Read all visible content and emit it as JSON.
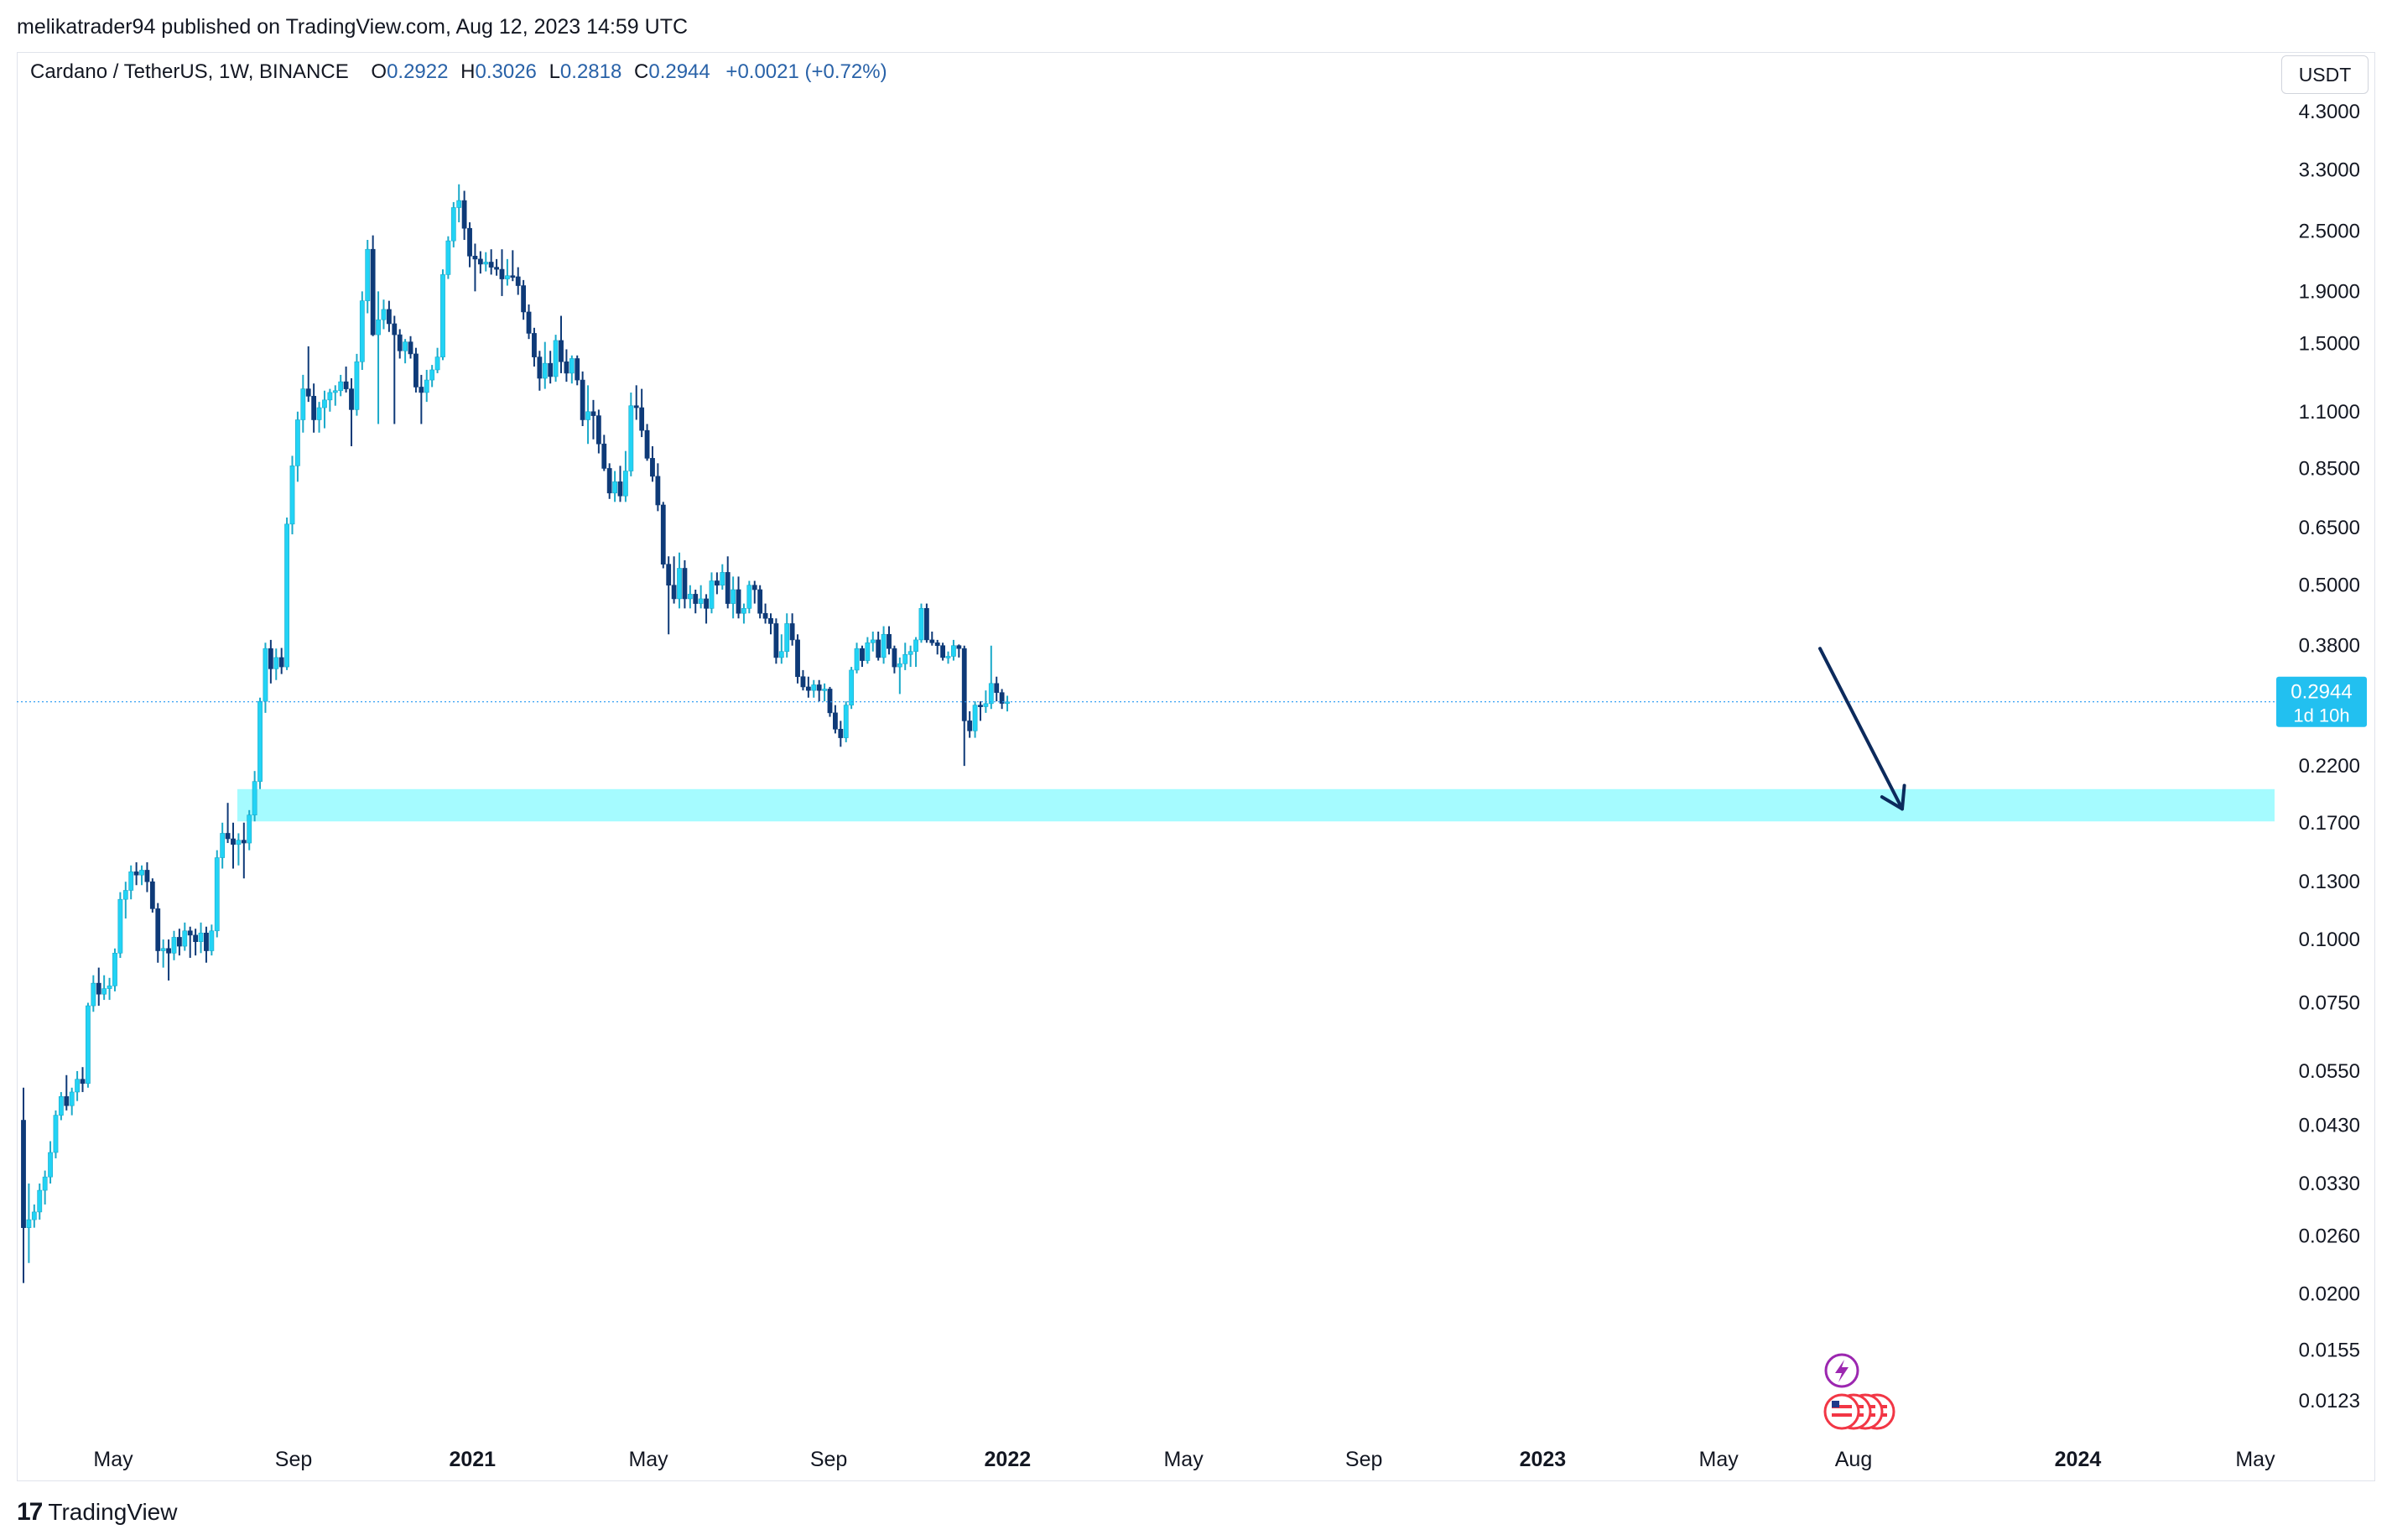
{
  "header": {
    "published_line": "melikatrader94 published on TradingView.com, Aug 12, 2023 14:59 UTC"
  },
  "legend": {
    "symbol": "Cardano / TetherUS, 1W, BINANCE",
    "o_label": "O",
    "o_value": "0.2922",
    "h_label": "H",
    "h_value": "0.3026",
    "l_label": "L",
    "l_value": "0.2818",
    "c_label": "C",
    "c_value": "0.2944",
    "change": "+0.0021 (+0.72%)"
  },
  "currency_button": "USDT",
  "price_tag": {
    "price": "0.2944",
    "countdown": "1d 10h"
  },
  "footer": {
    "brand": "TradingView",
    "logo_glyph": "17"
  },
  "colors": {
    "up": "#22d3f5",
    "down": "#0e3a78",
    "zone": "#a5fbff",
    "arrow": "#0c2a5c",
    "price_tag": "#22c0f0",
    "event_purple": "#9c27b0",
    "event_red": "#f23645"
  },
  "chart_data": {
    "type": "candlestick",
    "scale": "log",
    "symbol": "Cardano / TetherUS",
    "interval": "1W",
    "exchange": "BINANCE",
    "currency": "USDT",
    "last_price": 0.2944,
    "x_labels": [
      {
        "date": "2020-05-01",
        "label": "May",
        "bold": false
      },
      {
        "date": "2020-09-01",
        "label": "Sep",
        "bold": false
      },
      {
        "date": "2021-01-01",
        "label": "2021",
        "bold": true
      },
      {
        "date": "2021-05-01",
        "label": "May",
        "bold": false
      },
      {
        "date": "2021-09-01",
        "label": "Sep",
        "bold": false
      },
      {
        "date": "2022-01-01",
        "label": "2022",
        "bold": true
      },
      {
        "date": "2022-05-01",
        "label": "May",
        "bold": false
      },
      {
        "date": "2022-09-01",
        "label": "Sep",
        "bold": false
      },
      {
        "date": "2023-01-01",
        "label": "2023",
        "bold": true
      },
      {
        "date": "2023-05-01",
        "label": "May",
        "bold": false
      },
      {
        "date": "2023-08-01",
        "label": "Aug",
        "bold": false
      },
      {
        "date": "2024-01-01",
        "label": "2024",
        "bold": true
      },
      {
        "date": "2024-05-01",
        "label": "May",
        "bold": false
      }
    ],
    "y_ticks": [
      "4.3000",
      "3.3000",
      "2.5000",
      "1.9000",
      "1.5000",
      "1.1000",
      "0.8500",
      "0.6500",
      "0.5000",
      "0.3800",
      "0.2200",
      "0.1700",
      "0.1300",
      "0.1000",
      "0.0750",
      "0.0550",
      "0.0430",
      "0.0330",
      "0.0260",
      "0.0200",
      "0.0155",
      "0.0123"
    ],
    "ohlc_weekly": [
      [
        0.044,
        0.051,
        0.021,
        0.027
      ],
      [
        0.027,
        0.033,
        0.023,
        0.028
      ],
      [
        0.028,
        0.03,
        0.027,
        0.029
      ],
      [
        0.029,
        0.033,
        0.028,
        0.032
      ],
      [
        0.032,
        0.035,
        0.03,
        0.034
      ],
      [
        0.034,
        0.04,
        0.033,
        0.038
      ],
      [
        0.038,
        0.046,
        0.037,
        0.045
      ],
      [
        0.045,
        0.05,
        0.044,
        0.049
      ],
      [
        0.049,
        0.054,
        0.046,
        0.047
      ],
      [
        0.047,
        0.051,
        0.045,
        0.05
      ],
      [
        0.05,
        0.055,
        0.048,
        0.053
      ],
      [
        0.053,
        0.056,
        0.05,
        0.052
      ],
      [
        0.052,
        0.075,
        0.051,
        0.074
      ],
      [
        0.074,
        0.085,
        0.072,
        0.082
      ],
      [
        0.082,
        0.088,
        0.074,
        0.078
      ],
      [
        0.078,
        0.085,
        0.076,
        0.08
      ],
      [
        0.08,
        0.084,
        0.076,
        0.081
      ],
      [
        0.081,
        0.096,
        0.079,
        0.094
      ],
      [
        0.094,
        0.124,
        0.092,
        0.12
      ],
      [
        0.12,
        0.13,
        0.11,
        0.125
      ],
      [
        0.125,
        0.14,
        0.12,
        0.136
      ],
      [
        0.136,
        0.142,
        0.128,
        0.134
      ],
      [
        0.134,
        0.14,
        0.128,
        0.137
      ],
      [
        0.137,
        0.142,
        0.124,
        0.13
      ],
      [
        0.13,
        0.132,
        0.113,
        0.115
      ],
      [
        0.115,
        0.118,
        0.09,
        0.095
      ],
      [
        0.095,
        0.1,
        0.088,
        0.096
      ],
      [
        0.096,
        0.1,
        0.083,
        0.094
      ],
      [
        0.094,
        0.104,
        0.091,
        0.101
      ],
      [
        0.101,
        0.105,
        0.093,
        0.097
      ],
      [
        0.097,
        0.108,
        0.095,
        0.104
      ],
      [
        0.104,
        0.106,
        0.092,
        0.102
      ],
      [
        0.102,
        0.105,
        0.093,
        0.099
      ],
      [
        0.099,
        0.108,
        0.094,
        0.103
      ],
      [
        0.103,
        0.106,
        0.09,
        0.095
      ],
      [
        0.095,
        0.107,
        0.093,
        0.104
      ],
      [
        0.104,
        0.15,
        0.101,
        0.145
      ],
      [
        0.145,
        0.17,
        0.138,
        0.162
      ],
      [
        0.162,
        0.186,
        0.155,
        0.158
      ],
      [
        0.158,
        0.17,
        0.138,
        0.154
      ],
      [
        0.154,
        0.162,
        0.14,
        0.157
      ],
      [
        0.157,
        0.17,
        0.132,
        0.155
      ],
      [
        0.155,
        0.18,
        0.15,
        0.176
      ],
      [
        0.176,
        0.215,
        0.171,
        0.205
      ],
      [
        0.205,
        0.3,
        0.198,
        0.295
      ],
      [
        0.295,
        0.385,
        0.28,
        0.375
      ],
      [
        0.375,
        0.39,
        0.32,
        0.342
      ],
      [
        0.342,
        0.375,
        0.325,
        0.36
      ],
      [
        0.36,
        0.376,
        0.334,
        0.345
      ],
      [
        0.345,
        0.68,
        0.34,
        0.66
      ],
      [
        0.66,
        0.9,
        0.63,
        0.86
      ],
      [
        0.86,
        1.1,
        0.8,
        1.06
      ],
      [
        1.06,
        1.3,
        1.0,
        1.22
      ],
      [
        1.22,
        1.48,
        1.15,
        1.18
      ],
      [
        1.18,
        1.25,
        1.0,
        1.06
      ],
      [
        1.06,
        1.15,
        1.0,
        1.12
      ],
      [
        1.12,
        1.21,
        1.02,
        1.16
      ],
      [
        1.16,
        1.22,
        1.1,
        1.2
      ],
      [
        1.2,
        1.24,
        1.13,
        1.21
      ],
      [
        1.21,
        1.3,
        1.18,
        1.26
      ],
      [
        1.26,
        1.35,
        1.2,
        1.22
      ],
      [
        1.22,
        1.28,
        0.94,
        1.11
      ],
      [
        1.11,
        1.43,
        1.08,
        1.38
      ],
      [
        1.38,
        1.9,
        1.33,
        1.82
      ],
      [
        1.82,
        2.4,
        1.72,
        2.3
      ],
      [
        2.3,
        2.45,
        1.55,
        1.56
      ],
      [
        1.56,
        1.9,
        1.04,
        1.67
      ],
      [
        1.67,
        1.83,
        1.6,
        1.75
      ],
      [
        1.75,
        1.82,
        1.58,
        1.64
      ],
      [
        1.64,
        1.7,
        1.04,
        1.56
      ],
      [
        1.56,
        1.6,
        1.4,
        1.45
      ],
      [
        1.45,
        1.53,
        1.37,
        1.51
      ],
      [
        1.51,
        1.55,
        1.4,
        1.43
      ],
      [
        1.43,
        1.47,
        1.2,
        1.23
      ],
      [
        1.23,
        1.3,
        1.04,
        1.2
      ],
      [
        1.2,
        1.33,
        1.15,
        1.27
      ],
      [
        1.27,
        1.36,
        1.23,
        1.33
      ],
      [
        1.33,
        1.47,
        1.31,
        1.41
      ],
      [
        1.41,
        2.1,
        1.39,
        2.05
      ],
      [
        2.05,
        2.44,
        2.01,
        2.39
      ],
      [
        2.39,
        2.85,
        2.32,
        2.78
      ],
      [
        2.78,
        3.09,
        2.6,
        2.87
      ],
      [
        2.87,
        3.0,
        2.4,
        2.53
      ],
      [
        2.53,
        2.6,
        2.12,
        2.23
      ],
      [
        2.23,
        2.36,
        1.9,
        2.2
      ],
      [
        2.2,
        2.28,
        2.06,
        2.15
      ],
      [
        2.15,
        2.27,
        2.08,
        2.17
      ],
      [
        2.17,
        2.3,
        2.05,
        2.12
      ],
      [
        2.12,
        2.2,
        2.04,
        2.1
      ],
      [
        2.1,
        2.3,
        1.86,
        2.01
      ],
      [
        2.01,
        2.2,
        1.95,
        2.04
      ],
      [
        2.04,
        2.29,
        1.99,
        2.03
      ],
      [
        2.03,
        2.12,
        1.87,
        1.95
      ],
      [
        1.95,
        2.0,
        1.67,
        1.73
      ],
      [
        1.73,
        1.79,
        1.53,
        1.57
      ],
      [
        1.57,
        1.61,
        1.35,
        1.41
      ],
      [
        1.41,
        1.45,
        1.21,
        1.28
      ],
      [
        1.28,
        1.51,
        1.22,
        1.37
      ],
      [
        1.37,
        1.45,
        1.25,
        1.29
      ],
      [
        1.29,
        1.56,
        1.26,
        1.52
      ],
      [
        1.52,
        1.7,
        1.31,
        1.38
      ],
      [
        1.38,
        1.46,
        1.26,
        1.31
      ],
      [
        1.31,
        1.42,
        1.25,
        1.4
      ],
      [
        1.4,
        1.42,
        1.24,
        1.27
      ],
      [
        1.27,
        1.32,
        1.03,
        1.06
      ],
      [
        1.06,
        1.24,
        0.95,
        1.1
      ],
      [
        1.1,
        1.16,
        0.97,
        1.08
      ],
      [
        1.08,
        1.11,
        0.91,
        0.95
      ],
      [
        0.95,
        0.99,
        0.84,
        0.85
      ],
      [
        0.85,
        0.87,
        0.74,
        0.76
      ],
      [
        0.76,
        0.84,
        0.73,
        0.8
      ],
      [
        0.8,
        0.86,
        0.73,
        0.75
      ],
      [
        0.75,
        0.92,
        0.73,
        0.84
      ],
      [
        0.84,
        1.2,
        0.82,
        1.13
      ],
      [
        1.13,
        1.24,
        1.06,
        1.12
      ],
      [
        1.12,
        1.22,
        0.98,
        1.01
      ],
      [
        1.01,
        1.04,
        0.88,
        0.89
      ],
      [
        0.89,
        0.94,
        0.8,
        0.82
      ],
      [
        0.82,
        0.87,
        0.7,
        0.72
      ],
      [
        0.72,
        0.73,
        0.54,
        0.55
      ],
      [
        0.55,
        0.57,
        0.4,
        0.5
      ],
      [
        0.5,
        0.57,
        0.46,
        0.47
      ],
      [
        0.47,
        0.58,
        0.45,
        0.54
      ],
      [
        0.54,
        0.56,
        0.45,
        0.47
      ],
      [
        0.47,
        0.5,
        0.45,
        0.48
      ],
      [
        0.48,
        0.49,
        0.44,
        0.46
      ],
      [
        0.46,
        0.5,
        0.45,
        0.47
      ],
      [
        0.47,
        0.48,
        0.42,
        0.45
      ],
      [
        0.45,
        0.53,
        0.44,
        0.51
      ],
      [
        0.51,
        0.53,
        0.48,
        0.5
      ],
      [
        0.5,
        0.55,
        0.49,
        0.53
      ],
      [
        0.53,
        0.57,
        0.45,
        0.46
      ],
      [
        0.46,
        0.52,
        0.43,
        0.49
      ],
      [
        0.49,
        0.52,
        0.43,
        0.44
      ],
      [
        0.44,
        0.46,
        0.42,
        0.45
      ],
      [
        0.45,
        0.51,
        0.44,
        0.5
      ],
      [
        0.5,
        0.51,
        0.46,
        0.49
      ],
      [
        0.49,
        0.5,
        0.43,
        0.44
      ],
      [
        0.44,
        0.46,
        0.42,
        0.43
      ],
      [
        0.43,
        0.44,
        0.4,
        0.42
      ],
      [
        0.42,
        0.43,
        0.35,
        0.36
      ],
      [
        0.36,
        0.4,
        0.35,
        0.37
      ],
      [
        0.37,
        0.44,
        0.36,
        0.42
      ],
      [
        0.42,
        0.44,
        0.38,
        0.39
      ],
      [
        0.39,
        0.4,
        0.32,
        0.33
      ],
      [
        0.33,
        0.34,
        0.31,
        0.315
      ],
      [
        0.315,
        0.33,
        0.3,
        0.31
      ],
      [
        0.31,
        0.325,
        0.3,
        0.318
      ],
      [
        0.318,
        0.325,
        0.295,
        0.31
      ],
      [
        0.31,
        0.32,
        0.295,
        0.312
      ],
      [
        0.312,
        0.315,
        0.275,
        0.28
      ],
      [
        0.28,
        0.29,
        0.255,
        0.26
      ],
      [
        0.26,
        0.27,
        0.24,
        0.25
      ],
      [
        0.25,
        0.295,
        0.245,
        0.29
      ],
      [
        0.29,
        0.345,
        0.285,
        0.34
      ],
      [
        0.34,
        0.385,
        0.335,
        0.375
      ],
      [
        0.375,
        0.38,
        0.345,
        0.355
      ],
      [
        0.355,
        0.395,
        0.35,
        0.385
      ],
      [
        0.385,
        0.405,
        0.37,
        0.39
      ],
      [
        0.39,
        0.405,
        0.355,
        0.36
      ],
      [
        0.36,
        0.415,
        0.35,
        0.4
      ],
      [
        0.4,
        0.415,
        0.365,
        0.375
      ],
      [
        0.375,
        0.38,
        0.335,
        0.345
      ],
      [
        0.345,
        0.36,
        0.305,
        0.35
      ],
      [
        0.35,
        0.385,
        0.34,
        0.365
      ],
      [
        0.365,
        0.38,
        0.345,
        0.37
      ],
      [
        0.37,
        0.395,
        0.345,
        0.39
      ],
      [
        0.39,
        0.46,
        0.385,
        0.45
      ],
      [
        0.45,
        0.46,
        0.385,
        0.39
      ],
      [
        0.39,
        0.405,
        0.38,
        0.385
      ],
      [
        0.385,
        0.39,
        0.365,
        0.38
      ],
      [
        0.38,
        0.385,
        0.355,
        0.36
      ],
      [
        0.36,
        0.37,
        0.35,
        0.362
      ],
      [
        0.362,
        0.39,
        0.355,
        0.38
      ],
      [
        0.38,
        0.382,
        0.36,
        0.375
      ],
      [
        0.375,
        0.38,
        0.22,
        0.27
      ],
      [
        0.27,
        0.282,
        0.25,
        0.258
      ],
      [
        0.258,
        0.295,
        0.25,
        0.29
      ],
      [
        0.29,
        0.295,
        0.27,
        0.288
      ],
      [
        0.288,
        0.31,
        0.28,
        0.292
      ],
      [
        0.292,
        0.38,
        0.285,
        0.32
      ],
      [
        0.32,
        0.33,
        0.295,
        0.307
      ],
      [
        0.307,
        0.312,
        0.285,
        0.2923
      ],
      [
        0.2922,
        0.3026,
        0.2818,
        0.2944
      ]
    ],
    "highlight_zone": {
      "low": 0.171,
      "high": 0.198
    },
    "arrow": {
      "from_price": 0.375,
      "to_price": 0.181
    },
    "annotations": {
      "event_lightning": true,
      "event_flags": 4
    }
  }
}
